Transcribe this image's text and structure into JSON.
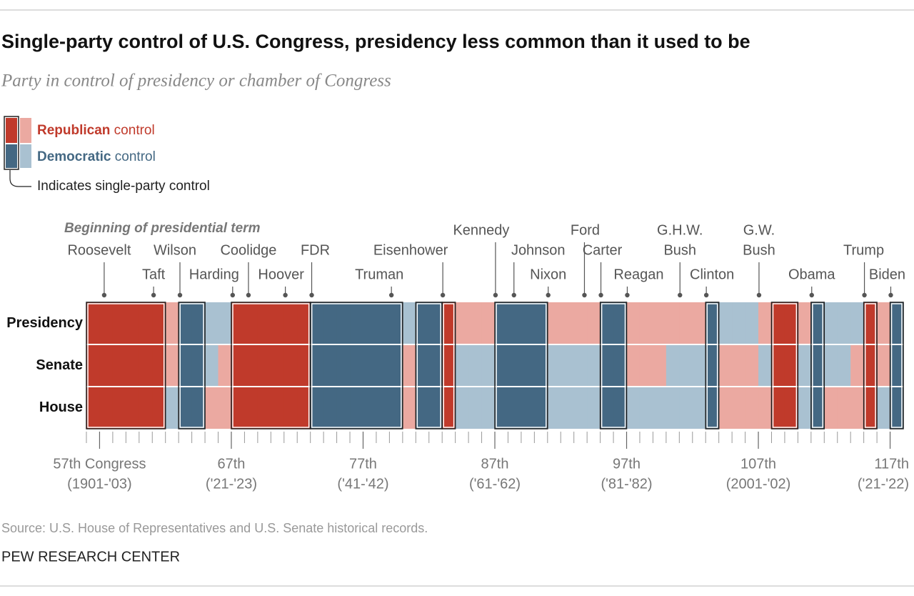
{
  "chart_data": {
    "type": "heatmap",
    "title": "Single-party control of U.S. Congress, presidency less common than it used to be",
    "subtitle": "Party in control of presidency or chamber of Congress",
    "annotation": "Beginning of presidential term",
    "legend": {
      "entries": [
        {
          "party": "Republican",
          "text": " control"
        },
        {
          "party": "Democratic",
          "text": " control"
        }
      ],
      "note": "Indicates single-party control"
    },
    "colors": {
      "Republican": {
        "unified": "#c03a2b",
        "divided": "#eba9a1"
      },
      "Democratic": {
        "unified": "#446883",
        "divided": "#a9c1d1"
      }
    },
    "x": [
      56,
      57,
      58,
      59,
      60,
      61,
      62,
      63,
      64,
      65,
      66,
      67,
      68,
      69,
      70,
      71,
      72,
      73,
      74,
      75,
      76,
      77,
      78,
      79,
      80,
      81,
      82,
      83,
      84,
      85,
      86,
      87,
      88,
      89,
      90,
      91,
      92,
      93,
      94,
      95,
      96,
      97,
      98,
      99,
      100,
      101,
      102,
      103,
      104,
      105,
      106,
      107,
      108,
      109,
      110,
      111,
      112,
      113,
      114,
      115,
      116,
      117
    ],
    "series": [
      {
        "name": "Presidency",
        "values": [
          "Republican",
          "Republican",
          "Republican",
          "Republican",
          "Republican",
          "Republican",
          "Republican",
          "Democratic",
          "Democratic",
          "Democratic",
          "Democratic",
          "Republican",
          "Republican",
          "Republican",
          "Republican",
          "Republican",
          "Republican",
          "Democratic",
          "Democratic",
          "Democratic",
          "Democratic",
          "Democratic",
          "Democratic",
          "Democratic",
          "Democratic",
          "Democratic",
          "Democratic",
          "Republican",
          "Republican",
          "Republican",
          "Republican",
          "Democratic",
          "Democratic",
          "Democratic",
          "Democratic",
          "Republican",
          "Republican",
          "Republican",
          "Republican",
          "Democratic",
          "Democratic",
          "Republican",
          "Republican",
          "Republican",
          "Republican",
          "Republican",
          "Republican",
          "Democratic",
          "Democratic",
          "Democratic",
          "Democratic",
          "Republican",
          "Republican",
          "Republican",
          "Republican",
          "Democratic",
          "Democratic",
          "Democratic",
          "Democratic",
          "Republican",
          "Republican",
          "Democratic"
        ]
      },
      {
        "name": "Senate",
        "values": [
          "Republican",
          "Republican",
          "Republican",
          "Republican",
          "Republican",
          "Republican",
          "Republican",
          "Democratic",
          "Democratic",
          "Democratic",
          "Republican",
          "Republican",
          "Republican",
          "Republican",
          "Republican",
          "Republican",
          "Republican",
          "Democratic",
          "Democratic",
          "Democratic",
          "Democratic",
          "Democratic",
          "Democratic",
          "Democratic",
          "Republican",
          "Democratic",
          "Democratic",
          "Republican",
          "Democratic",
          "Democratic",
          "Democratic",
          "Democratic",
          "Democratic",
          "Democratic",
          "Democratic",
          "Democratic",
          "Democratic",
          "Democratic",
          "Democratic",
          "Democratic",
          "Democratic",
          "Republican",
          "Republican",
          "Republican",
          "Democratic",
          "Democratic",
          "Democratic",
          "Democratic",
          "Republican",
          "Republican",
          "Republican",
          "Democratic",
          "Republican",
          "Republican",
          "Democratic",
          "Democratic",
          "Democratic",
          "Democratic",
          "Republican",
          "Republican",
          "Republican",
          "Democratic"
        ]
      },
      {
        "name": "House",
        "values": [
          "Republican",
          "Republican",
          "Republican",
          "Republican",
          "Republican",
          "Republican",
          "Democratic",
          "Democratic",
          "Democratic",
          "Republican",
          "Republican",
          "Republican",
          "Republican",
          "Republican",
          "Republican",
          "Republican",
          "Republican",
          "Democratic",
          "Democratic",
          "Democratic",
          "Democratic",
          "Democratic",
          "Democratic",
          "Democratic",
          "Republican",
          "Democratic",
          "Democratic",
          "Republican",
          "Democratic",
          "Democratic",
          "Democratic",
          "Democratic",
          "Democratic",
          "Democratic",
          "Democratic",
          "Democratic",
          "Democratic",
          "Democratic",
          "Democratic",
          "Democratic",
          "Democratic",
          "Democratic",
          "Democratic",
          "Democratic",
          "Democratic",
          "Democratic",
          "Democratic",
          "Democratic",
          "Republican",
          "Republican",
          "Republican",
          "Republican",
          "Republican",
          "Republican",
          "Democratic",
          "Democratic",
          "Republican",
          "Republican",
          "Republican",
          "Republican",
          "Democratic",
          "Democratic"
        ]
      }
    ],
    "xticks": [
      {
        "value": 57,
        "label": "57th Congress",
        "sublabel": "(1901-'03)"
      },
      {
        "value": 67,
        "label": "67th",
        "sublabel": "('21-'23)"
      },
      {
        "value": 77,
        "label": "77th",
        "sublabel": "('41-'42)"
      },
      {
        "value": 87,
        "label": "87th",
        "sublabel": "('61-'62)"
      },
      {
        "value": 97,
        "label": "97th",
        "sublabel": "('81-'82)"
      },
      {
        "value": 107,
        "label": "107th",
        "sublabel": "(2001-'02)"
      },
      {
        "value": 117,
        "label": "117th",
        "sublabel": "('21-'22)"
      }
    ],
    "presidents": [
      {
        "label": [
          "Roosevelt"
        ],
        "year": 1901.7
      },
      {
        "label": [
          "Taft"
        ],
        "year": 1909.2
      },
      {
        "label": [
          "Wilson"
        ],
        "year": 1913.2
      },
      {
        "label": [
          "Harding"
        ],
        "year": 1921.2
      },
      {
        "label": [
          "Coolidge"
        ],
        "year": 1923.6
      },
      {
        "label": [
          "Hoover"
        ],
        "year": 1929.2
      },
      {
        "label": [
          "FDR"
        ],
        "year": 1933.2
      },
      {
        "label": [
          "Truman"
        ],
        "year": 1945.3
      },
      {
        "label": [
          "Eisenhower"
        ],
        "year": 1953.1
      },
      {
        "label": [
          "Kennedy"
        ],
        "year": 1961.1
      },
      {
        "label": [
          "Johnson"
        ],
        "year": 1963.9
      },
      {
        "label": [
          "Nixon"
        ],
        "year": 1969.1
      },
      {
        "label": [
          "Ford"
        ],
        "year": 1974.6
      },
      {
        "label": [
          "Carter"
        ],
        "year": 1977.1
      },
      {
        "label": [
          "Reagan"
        ],
        "year": 1981.1
      },
      {
        "label": [
          "G.H.W.",
          "Bush"
        ],
        "year": 1989.1
      },
      {
        "label": [
          "Clinton"
        ],
        "year": 1993.1
      },
      {
        "label": [
          "G.W.",
          "Bush"
        ],
        "year": 2001.1
      },
      {
        "label": [
          "Obama"
        ],
        "year": 2009.1
      },
      {
        "label": [
          "Trump"
        ],
        "year": 2017.1
      },
      {
        "label": [
          "Biden"
        ],
        "year": 2021.1
      }
    ],
    "source": "Source: U.S. House of Representatives and U.S. Senate historical records.",
    "credit": "PEW RESEARCH CENTER"
  }
}
